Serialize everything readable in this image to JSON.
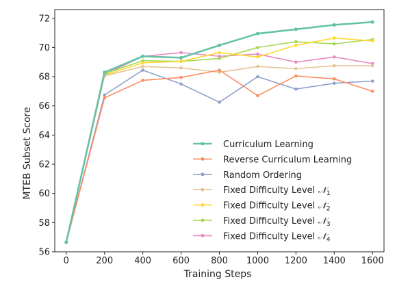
{
  "chart_data": {
    "type": "line",
    "xlabel": "Training Steps",
    "ylabel": "MTEB Subset Score",
    "x": [
      0,
      200,
      400,
      600,
      800,
      1000,
      1200,
      1400,
      1600
    ],
    "xlim": [
      -60,
      1660
    ],
    "ylim": [
      56,
      72.6
    ],
    "xticks": [
      0,
      200,
      400,
      600,
      800,
      1000,
      1200,
      1400,
      1600
    ],
    "yticks": [
      56,
      58,
      60,
      62,
      64,
      66,
      68,
      70,
      72
    ],
    "grid": false,
    "legend_position": "lower-right",
    "series": [
      {
        "name": "Curriculum Learning",
        "color": "#66c2a5",
        "values": [
          56.65,
          68.3,
          69.4,
          69.3,
          70.15,
          70.95,
          71.25,
          71.55,
          71.75
        ]
      },
      {
        "name": "Reverse Curriculum Learning",
        "color": "#fc8d62",
        "values": [
          56.65,
          66.55,
          67.75,
          67.95,
          68.45,
          66.7,
          68.05,
          67.85,
          67.0
        ]
      },
      {
        "name": "Random Ordering",
        "color": "#8da0cb",
        "values": [
          56.65,
          66.75,
          68.45,
          67.5,
          66.25,
          68.0,
          67.15,
          67.55,
          67.7
        ]
      },
      {
        "name": "Fixed Difficulty Level",
        "name_sub": "1",
        "color": "#e5c494",
        "values": [
          56.65,
          68.05,
          68.7,
          68.6,
          68.3,
          68.7,
          68.55,
          68.75,
          68.75
        ]
      },
      {
        "name": "Fixed Difficulty Level",
        "name_sub": "2",
        "color": "#ffd92f",
        "values": [
          56.65,
          68.1,
          68.95,
          69.05,
          69.65,
          69.35,
          70.15,
          70.65,
          70.45
        ]
      },
      {
        "name": "Fixed Difficulty Level",
        "name_sub": "3",
        "color": "#a6d854",
        "values": [
          56.65,
          68.2,
          69.1,
          69.05,
          69.25,
          70.0,
          70.4,
          70.25,
          70.55
        ]
      },
      {
        "name": "Fixed Difficulty Level",
        "name_sub": "4",
        "color": "#e78ac3",
        "values": [
          56.65,
          68.15,
          69.4,
          69.65,
          69.4,
          69.55,
          69.0,
          69.35,
          68.9
        ]
      }
    ]
  }
}
